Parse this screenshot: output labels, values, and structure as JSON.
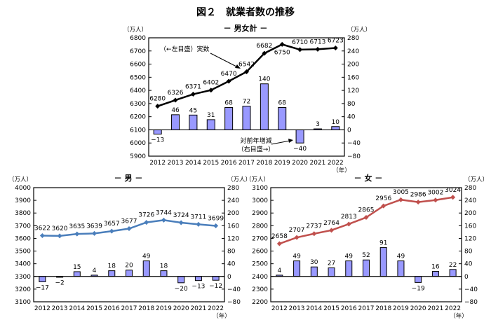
{
  "title": "図２　就業者数の推移",
  "colors": {
    "bar_fill": "#9999ff",
    "bar_stroke": "#000000"
  },
  "chart_data": [
    {
      "type": "bar+line",
      "subtitle": "－ 男女計 －",
      "left_unit": "（万人）",
      "right_unit": "（万人）",
      "x_unit": "（年）",
      "categories": [
        "2012",
        "2013",
        "2014",
        "2015",
        "2016",
        "2017",
        "2018",
        "2019",
        "2020",
        "2021",
        "2022"
      ],
      "left_ylim": [
        5900,
        6800
      ],
      "left_ticks": [
        5900,
        6000,
        6100,
        6200,
        6300,
        6400,
        6500,
        6600,
        6700,
        6800
      ],
      "right_ylim": [
        -80,
        280
      ],
      "right_ticks": [
        -80,
        -40,
        0,
        40,
        80,
        120,
        160,
        200,
        240,
        280
      ],
      "line_color": "#000000",
      "series": [
        {
          "name": "実数",
          "axis": "left",
          "type": "line",
          "values": [
            6280,
            6326,
            6371,
            6402,
            6470,
            6542,
            6682,
            6750,
            6710,
            6713,
            6723
          ]
        },
        {
          "name": "対前年増減",
          "axis": "right",
          "type": "bar",
          "values": [
            -13,
            46,
            45,
            31,
            68,
            72,
            140,
            68,
            -40,
            3,
            10
          ]
        }
      ],
      "annotations": {
        "line_note": "（←左目盛）実数",
        "bar_note_1": "対前年増減",
        "bar_note_2": "（右目盛→）"
      }
    },
    {
      "type": "bar+line",
      "subtitle": "－ 男 －",
      "left_unit": "（万人）",
      "right_unit": "（万人）",
      "x_unit": "（年）",
      "categories": [
        "2012",
        "2013",
        "2014",
        "2015",
        "2016",
        "2017",
        "2018",
        "2019",
        "2020",
        "2021",
        "2022"
      ],
      "left_ylim": [
        3100,
        4000
      ],
      "left_ticks": [
        3100,
        3200,
        3300,
        3400,
        3500,
        3600,
        3700,
        3800,
        3900,
        4000
      ],
      "right_ylim": [
        -80,
        280
      ],
      "right_ticks": [
        -80,
        -40,
        0,
        40,
        80,
        120,
        160,
        200,
        240,
        280
      ],
      "line_color": "#4a7ebb",
      "series": [
        {
          "axis": "left",
          "type": "line",
          "values": [
            3622,
            3620,
            3635,
            3639,
            3657,
            3677,
            3726,
            3744,
            3724,
            3711,
            3699
          ]
        },
        {
          "axis": "right",
          "type": "bar",
          "values": [
            -17,
            -2,
            15,
            4,
            18,
            20,
            49,
            18,
            -20,
            -13,
            -12
          ]
        }
      ]
    },
    {
      "type": "bar+line",
      "subtitle": "－ 女 －",
      "left_unit": "（万人）",
      "right_unit": "（万人）",
      "x_unit": "（年）",
      "categories": [
        "2012",
        "2013",
        "2014",
        "2015",
        "2016",
        "2017",
        "2018",
        "2019",
        "2020",
        "2021",
        "2022"
      ],
      "left_ylim": [
        2200,
        3100
      ],
      "left_ticks": [
        2200,
        2300,
        2400,
        2500,
        2600,
        2700,
        2800,
        2900,
        3000,
        3100
      ],
      "right_ylim": [
        -80,
        280
      ],
      "right_ticks": [
        -80,
        -40,
        0,
        40,
        80,
        120,
        160,
        200,
        240,
        280
      ],
      "line_color": "#c0504d",
      "series": [
        {
          "axis": "left",
          "type": "line",
          "values": [
            2658,
            2707,
            2737,
            2764,
            2813,
            2865,
            2956,
            3005,
            2986,
            3002,
            3024
          ]
        },
        {
          "axis": "right",
          "type": "bar",
          "values": [
            4,
            49,
            30,
            27,
            49,
            52,
            91,
            49,
            -19,
            16,
            22
          ]
        }
      ]
    }
  ]
}
